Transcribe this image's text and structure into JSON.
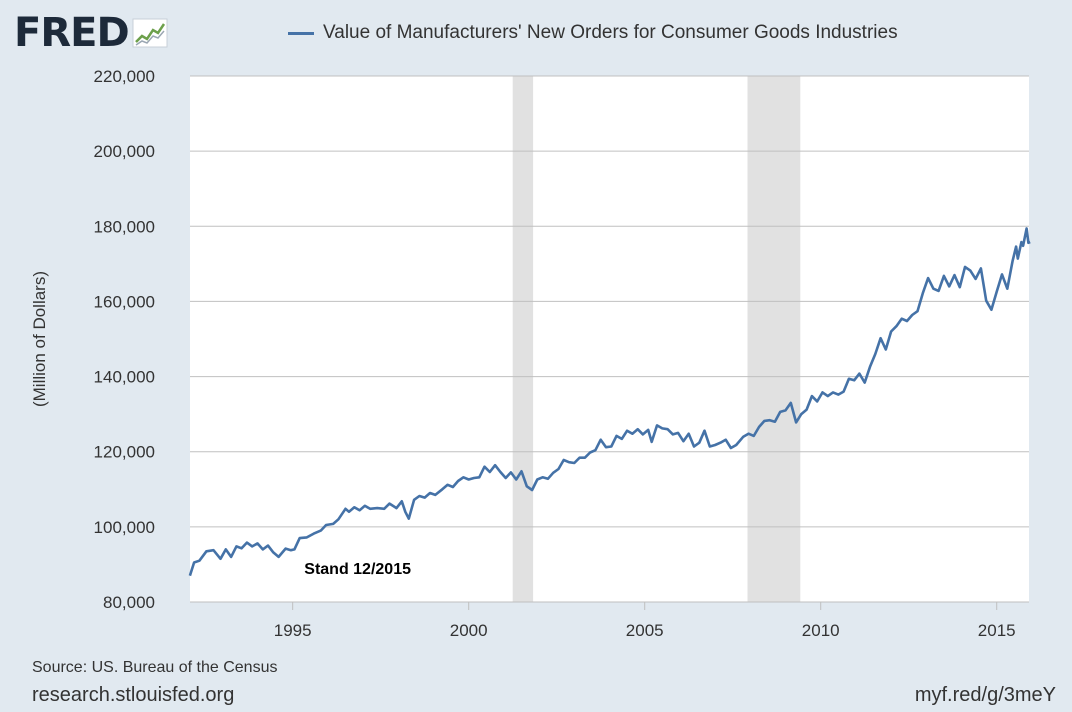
{
  "header": {
    "logo_text": "FRED",
    "logo_icon": "fred-chart-icon",
    "legend_label": "Value of Manufacturers' New Orders for Consumer Goods Industries",
    "series_color": "#4572a7"
  },
  "footer": {
    "source": "Source: US. Bureau of the Census",
    "site": "research.stlouisfed.org",
    "shortlink": "myf.red/g/3meY"
  },
  "chart_data": {
    "type": "line",
    "title": "Value of Manufacturers' New Orders for Consumer Goods Industries",
    "xlabel": "",
    "ylabel": "(Million of Dollars)",
    "xlim": [
      1992.083,
      2015.917
    ],
    "ylim": [
      80000,
      220000
    ],
    "grid": true,
    "x_ticks": [
      {
        "value": 1995,
        "label": "1995"
      },
      {
        "value": 2000,
        "label": "2000"
      },
      {
        "value": 2005,
        "label": "2005"
      },
      {
        "value": 2010,
        "label": "2010"
      },
      {
        "value": 2015,
        "label": "2015"
      }
    ],
    "y_ticks": [
      {
        "value": 80000,
        "label": "80,000"
      },
      {
        "value": 100000,
        "label": "100,000"
      },
      {
        "value": 120000,
        "label": "120,000"
      },
      {
        "value": 140000,
        "label": "140,000"
      },
      {
        "value": 160000,
        "label": "160,000"
      },
      {
        "value": 180000,
        "label": "180,000"
      },
      {
        "value": 200000,
        "label": "200,000"
      },
      {
        "value": 220000,
        "label": "220,000"
      }
    ],
    "recessions": [
      {
        "start": 2001.25,
        "end": 2001.83
      },
      {
        "start": 2007.92,
        "end": 2009.42
      }
    ],
    "annotation": {
      "text": "Stand 12/2015",
      "x": 1993.0,
      "y": 88500
    },
    "series": [
      {
        "name": "Value of Manufacturers' New Orders for Consumer Goods Industries",
        "points": [
          [
            1992.08,
            87000
          ],
          [
            1992.2,
            90500
          ],
          [
            1992.35,
            91000
          ],
          [
            1992.55,
            93500
          ],
          [
            1992.75,
            93800
          ],
          [
            1992.95,
            91500
          ],
          [
            1993.1,
            94000
          ],
          [
            1993.25,
            92000
          ],
          [
            1993.4,
            94800
          ],
          [
            1993.55,
            94300
          ],
          [
            1993.7,
            95800
          ],
          [
            1993.85,
            94800
          ],
          [
            1994.0,
            95600
          ],
          [
            1994.15,
            94000
          ],
          [
            1994.3,
            95000
          ],
          [
            1994.45,
            93200
          ],
          [
            1994.6,
            92000
          ],
          [
            1994.8,
            94200
          ],
          [
            1994.95,
            93800
          ],
          [
            1995.05,
            94000
          ],
          [
            1995.2,
            97000
          ],
          [
            1995.4,
            97200
          ],
          [
            1995.6,
            98200
          ],
          [
            1995.8,
            99000
          ],
          [
            1995.95,
            100500
          ],
          [
            1996.15,
            100800
          ],
          [
            1996.3,
            102000
          ],
          [
            1996.5,
            104800
          ],
          [
            1996.6,
            104000
          ],
          [
            1996.75,
            105200
          ],
          [
            1996.9,
            104400
          ],
          [
            1997.05,
            105600
          ],
          [
            1997.2,
            104800
          ],
          [
            1997.4,
            105000
          ],
          [
            1997.6,
            104800
          ],
          [
            1997.75,
            106200
          ],
          [
            1997.95,
            105000
          ],
          [
            1998.1,
            106800
          ],
          [
            1998.2,
            104000
          ],
          [
            1998.3,
            102200
          ],
          [
            1998.45,
            107200
          ],
          [
            1998.6,
            108200
          ],
          [
            1998.75,
            107800
          ],
          [
            1998.9,
            109000
          ],
          [
            1999.05,
            108500
          ],
          [
            1999.25,
            110000
          ],
          [
            1999.4,
            111200
          ],
          [
            1999.55,
            110600
          ],
          [
            1999.7,
            112200
          ],
          [
            1999.85,
            113200
          ],
          [
            2000.0,
            112600
          ],
          [
            2000.15,
            113000
          ],
          [
            2000.3,
            113200
          ],
          [
            2000.45,
            116000
          ],
          [
            2000.6,
            114600
          ],
          [
            2000.75,
            116400
          ],
          [
            2000.9,
            114600
          ],
          [
            2001.05,
            113000
          ],
          [
            2001.2,
            114500
          ],
          [
            2001.35,
            112600
          ],
          [
            2001.5,
            114800
          ],
          [
            2001.65,
            110800
          ],
          [
            2001.8,
            109800
          ],
          [
            2001.95,
            112600
          ],
          [
            2002.1,
            113200
          ],
          [
            2002.25,
            112800
          ],
          [
            2002.4,
            114400
          ],
          [
            2002.55,
            115400
          ],
          [
            2002.7,
            117800
          ],
          [
            2002.85,
            117200
          ],
          [
            2003.0,
            117000
          ],
          [
            2003.15,
            118400
          ],
          [
            2003.3,
            118400
          ],
          [
            2003.45,
            119800
          ],
          [
            2003.6,
            120400
          ],
          [
            2003.75,
            123200
          ],
          [
            2003.9,
            121200
          ],
          [
            2004.05,
            121400
          ],
          [
            2004.2,
            124200
          ],
          [
            2004.35,
            123400
          ],
          [
            2004.5,
            125600
          ],
          [
            2004.65,
            124800
          ],
          [
            2004.8,
            126000
          ],
          [
            2004.95,
            124600
          ],
          [
            2005.1,
            125800
          ],
          [
            2005.2,
            122600
          ],
          [
            2005.35,
            127000
          ],
          [
            2005.5,
            126200
          ],
          [
            2005.65,
            126000
          ],
          [
            2005.8,
            124600
          ],
          [
            2005.95,
            125000
          ],
          [
            2006.1,
            122800
          ],
          [
            2006.25,
            124800
          ],
          [
            2006.4,
            121400
          ],
          [
            2006.55,
            122400
          ],
          [
            2006.7,
            125600
          ],
          [
            2006.85,
            121400
          ],
          [
            2007.0,
            121800
          ],
          [
            2007.15,
            122400
          ],
          [
            2007.3,
            123200
          ],
          [
            2007.45,
            121000
          ],
          [
            2007.6,
            121800
          ],
          [
            2007.8,
            124000
          ],
          [
            2007.95,
            124800
          ],
          [
            2008.1,
            124200
          ],
          [
            2008.25,
            126600
          ],
          [
            2008.4,
            128200
          ],
          [
            2008.55,
            128400
          ],
          [
            2008.7,
            128000
          ],
          [
            2008.85,
            130600
          ],
          [
            2009.0,
            131000
          ],
          [
            2009.15,
            133000
          ],
          [
            2009.3,
            127800
          ],
          [
            2009.45,
            130000
          ],
          [
            2009.6,
            131200
          ],
          [
            2009.75,
            134800
          ],
          [
            2009.9,
            133400
          ],
          [
            2010.05,
            135800
          ],
          [
            2010.2,
            134800
          ],
          [
            2010.35,
            135800
          ],
          [
            2010.5,
            135200
          ],
          [
            2010.65,
            136000
          ],
          [
            2010.8,
            139400
          ],
          [
            2010.95,
            139000
          ],
          [
            2011.1,
            140800
          ],
          [
            2011.25,
            138400
          ],
          [
            2011.4,
            142600
          ],
          [
            2011.55,
            146000
          ],
          [
            2011.7,
            150200
          ],
          [
            2011.85,
            147200
          ],
          [
            2012.0,
            152000
          ],
          [
            2012.15,
            153400
          ],
          [
            2012.3,
            155400
          ],
          [
            2012.45,
            154800
          ],
          [
            2012.6,
            156400
          ],
          [
            2012.75,
            157400
          ],
          [
            2012.9,
            162200
          ],
          [
            2013.05,
            166200
          ],
          [
            2013.2,
            163400
          ],
          [
            2013.35,
            162800
          ],
          [
            2013.5,
            166800
          ],
          [
            2013.65,
            164000
          ],
          [
            2013.8,
            167000
          ],
          [
            2013.95,
            163800
          ],
          [
            2014.1,
            169200
          ],
          [
            2014.25,
            168200
          ],
          [
            2014.4,
            166000
          ],
          [
            2014.55,
            168800
          ],
          [
            2014.7,
            160200
          ],
          [
            2014.85,
            157800
          ],
          [
            2015.0,
            162600
          ],
          [
            2015.15,
            167200
          ],
          [
            2015.3,
            163400
          ],
          [
            2015.45,
            170800
          ],
          [
            2015.6,
            171400
          ],
          [
            2015.75,
            174800
          ],
          [
            2015.9,
            175600
          ],
          [
            2015.95,
            175800
          ],
          [
            2015.55,
            174600
          ],
          [
            2015.7,
            175800
          ],
          [
            2015.85,
            179400
          ]
        ]
      }
    ]
  }
}
